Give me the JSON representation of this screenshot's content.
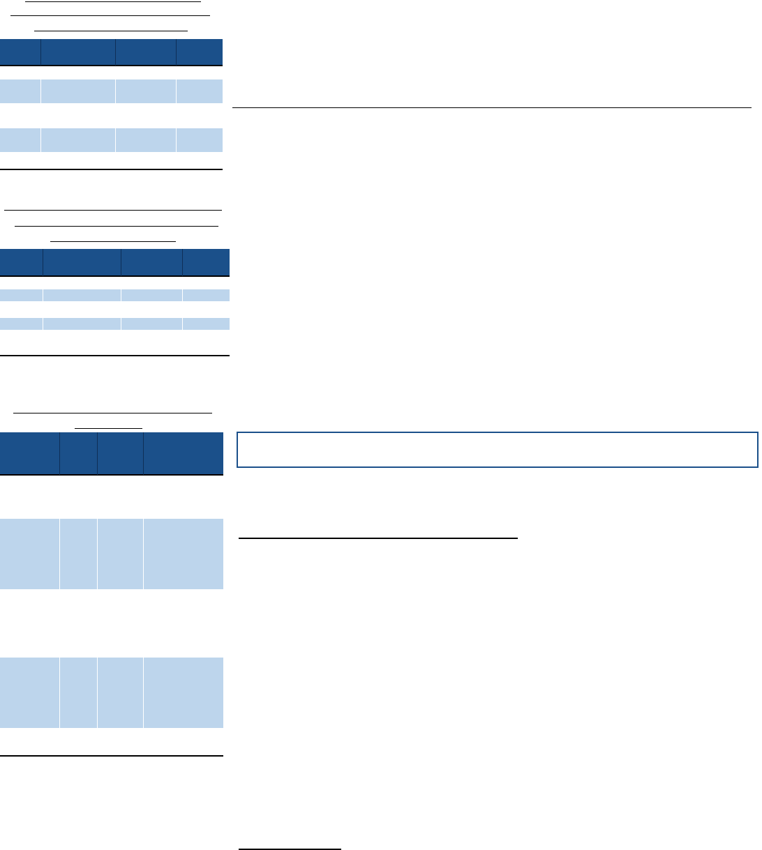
{
  "doc": {
    "tables": [
      {
        "columns": 4,
        "rows": 5
      },
      {
        "columns": 4,
        "rows": 5
      },
      {
        "columns": 4,
        "rows": 5
      }
    ],
    "colors": {
      "header": "#1b508a",
      "band": "#bdd5ec",
      "rule": "#000000"
    }
  }
}
